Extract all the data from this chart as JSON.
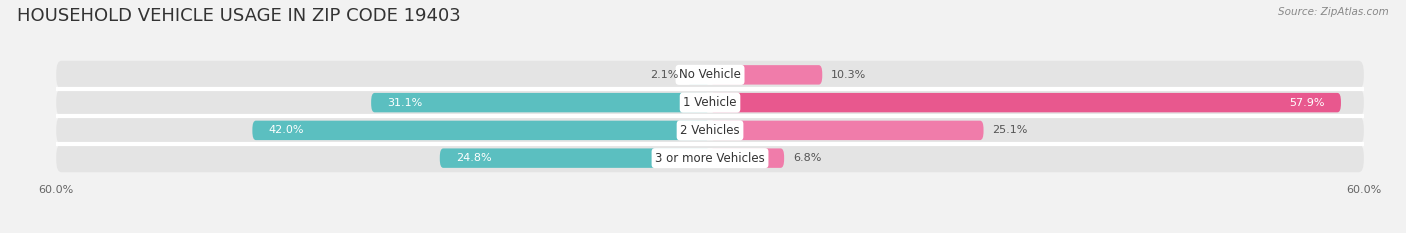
{
  "title": "HOUSEHOLD VEHICLE USAGE IN ZIP CODE 19403",
  "source": "Source: ZipAtlas.com",
  "categories": [
    "No Vehicle",
    "1 Vehicle",
    "2 Vehicles",
    "3 or more Vehicles"
  ],
  "owner_values": [
    2.1,
    31.1,
    42.0,
    24.8
  ],
  "renter_values": [
    10.3,
    57.9,
    25.1,
    6.8
  ],
  "owner_color": "#5bbfc0",
  "renter_color": "#f07caa",
  "renter_color_dark": "#e8588e",
  "background_color": "#f2f2f2",
  "bar_background_color": "#e4e4e4",
  "axis_limit": 60.0,
  "title_fontsize": 13,
  "bar_height": 0.7,
  "axis_tick_label": "60.0%",
  "row_sep_color": "#ffffff",
  "label_color_dark": "#555555",
  "label_color_white": "#ffffff"
}
